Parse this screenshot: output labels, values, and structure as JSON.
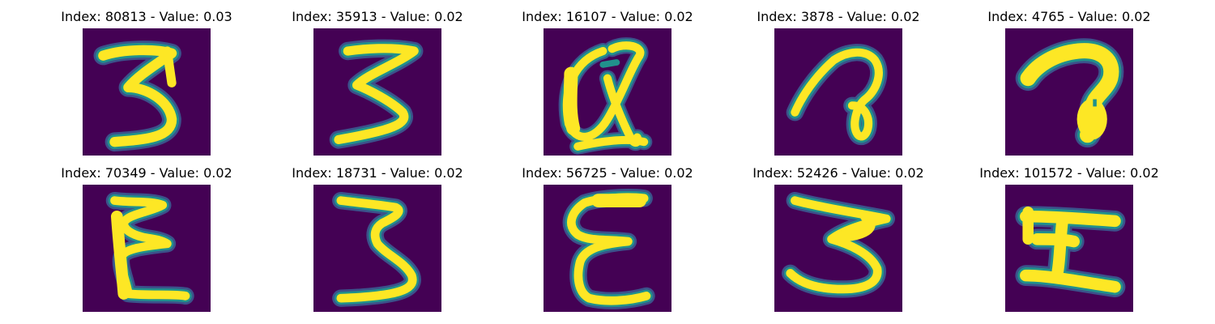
{
  "colors": {
    "background": "#440154",
    "stroke_core": "#fde725",
    "stroke_halo": "#21918c",
    "stroke_edge": "#3b528b"
  },
  "panels": [
    {
      "title": "Index: 80813 - Value: 0.03",
      "glyph": "digit-3"
    },
    {
      "title": "Index: 35913 - Value: 0.02",
      "glyph": "digit-3"
    },
    {
      "title": "Index: 16107 - Value: 0.02",
      "glyph": "letter-a"
    },
    {
      "title": "Index: 3878 - Value: 0.02",
      "glyph": "hook-a"
    },
    {
      "title": "Index: 4765 - Value: 0.02",
      "glyph": "hook-a"
    },
    {
      "title": "Index: 70349 - Value: 0.02",
      "glyph": "rotated-3"
    },
    {
      "title": "Index: 18731 - Value: 0.02",
      "glyph": "digit-3"
    },
    {
      "title": "Index: 56725 - Value: 0.02",
      "glyph": "letter-e"
    },
    {
      "title": "Index: 52426 - Value: 0.02",
      "glyph": "digit-3"
    },
    {
      "title": "Index: 101572 - Value: 0.02",
      "glyph": "letter-i"
    }
  ]
}
